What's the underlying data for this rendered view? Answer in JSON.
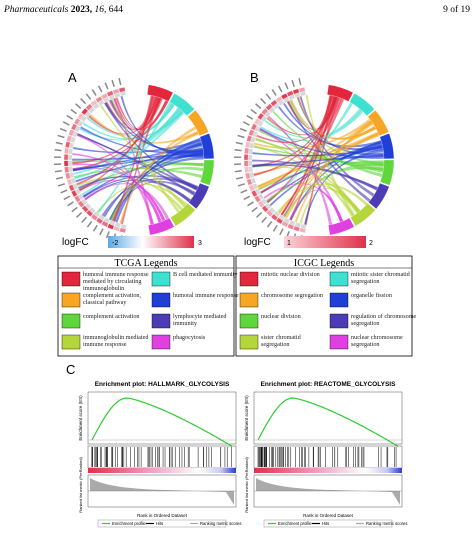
{
  "header": {
    "journal": "Pharmaceuticals",
    "year": "2023,",
    "volume": "16,",
    "article": "644",
    "page": "9 of 19"
  },
  "panels": {
    "a": "A",
    "b": "B",
    "c": "C"
  },
  "logfc": [
    {
      "label": "logFC",
      "low": "-2",
      "high": "3"
    },
    {
      "label": "logFC",
      "low": "1",
      "high": "2"
    }
  ],
  "legends": [
    {
      "title": "TCGA Legends",
      "items": [
        "humoral immune response mediated by circulating immunoglobulin",
        "B cell mediated immunity",
        "complement activation, classical pathway",
        "humoral immune response",
        "complement activation",
        "lymphocyte mediated immunity",
        "immunoglobulin mediated immune response",
        "phagocytosis"
      ]
    },
    {
      "title": "ICGC Legends",
      "items": [
        "mitotic nuclear division",
        "mitotic sister chromatid segregation",
        "chromosome segregation",
        "organelle fission",
        "nuclear division",
        "regulation of chromosome segregation",
        "sister chromatid segregation",
        "nuclear chromosome segregation"
      ]
    }
  ],
  "gsea": {
    "plots": [
      {
        "title": "Enrichment plot: HALLMARK_GLYCOLYSIS"
      },
      {
        "title": "Enrichment plot: REACTOME_GLYCOLYSIS"
      }
    ],
    "y_label": "Enrichment score (ES)",
    "y2_label": "Ranked list metric (PreRanked)",
    "x_label": "Rank in Ordered Dataset",
    "legend": [
      "Enrichment profile",
      "Hits",
      "Ranking metric scores"
    ]
  }
}
